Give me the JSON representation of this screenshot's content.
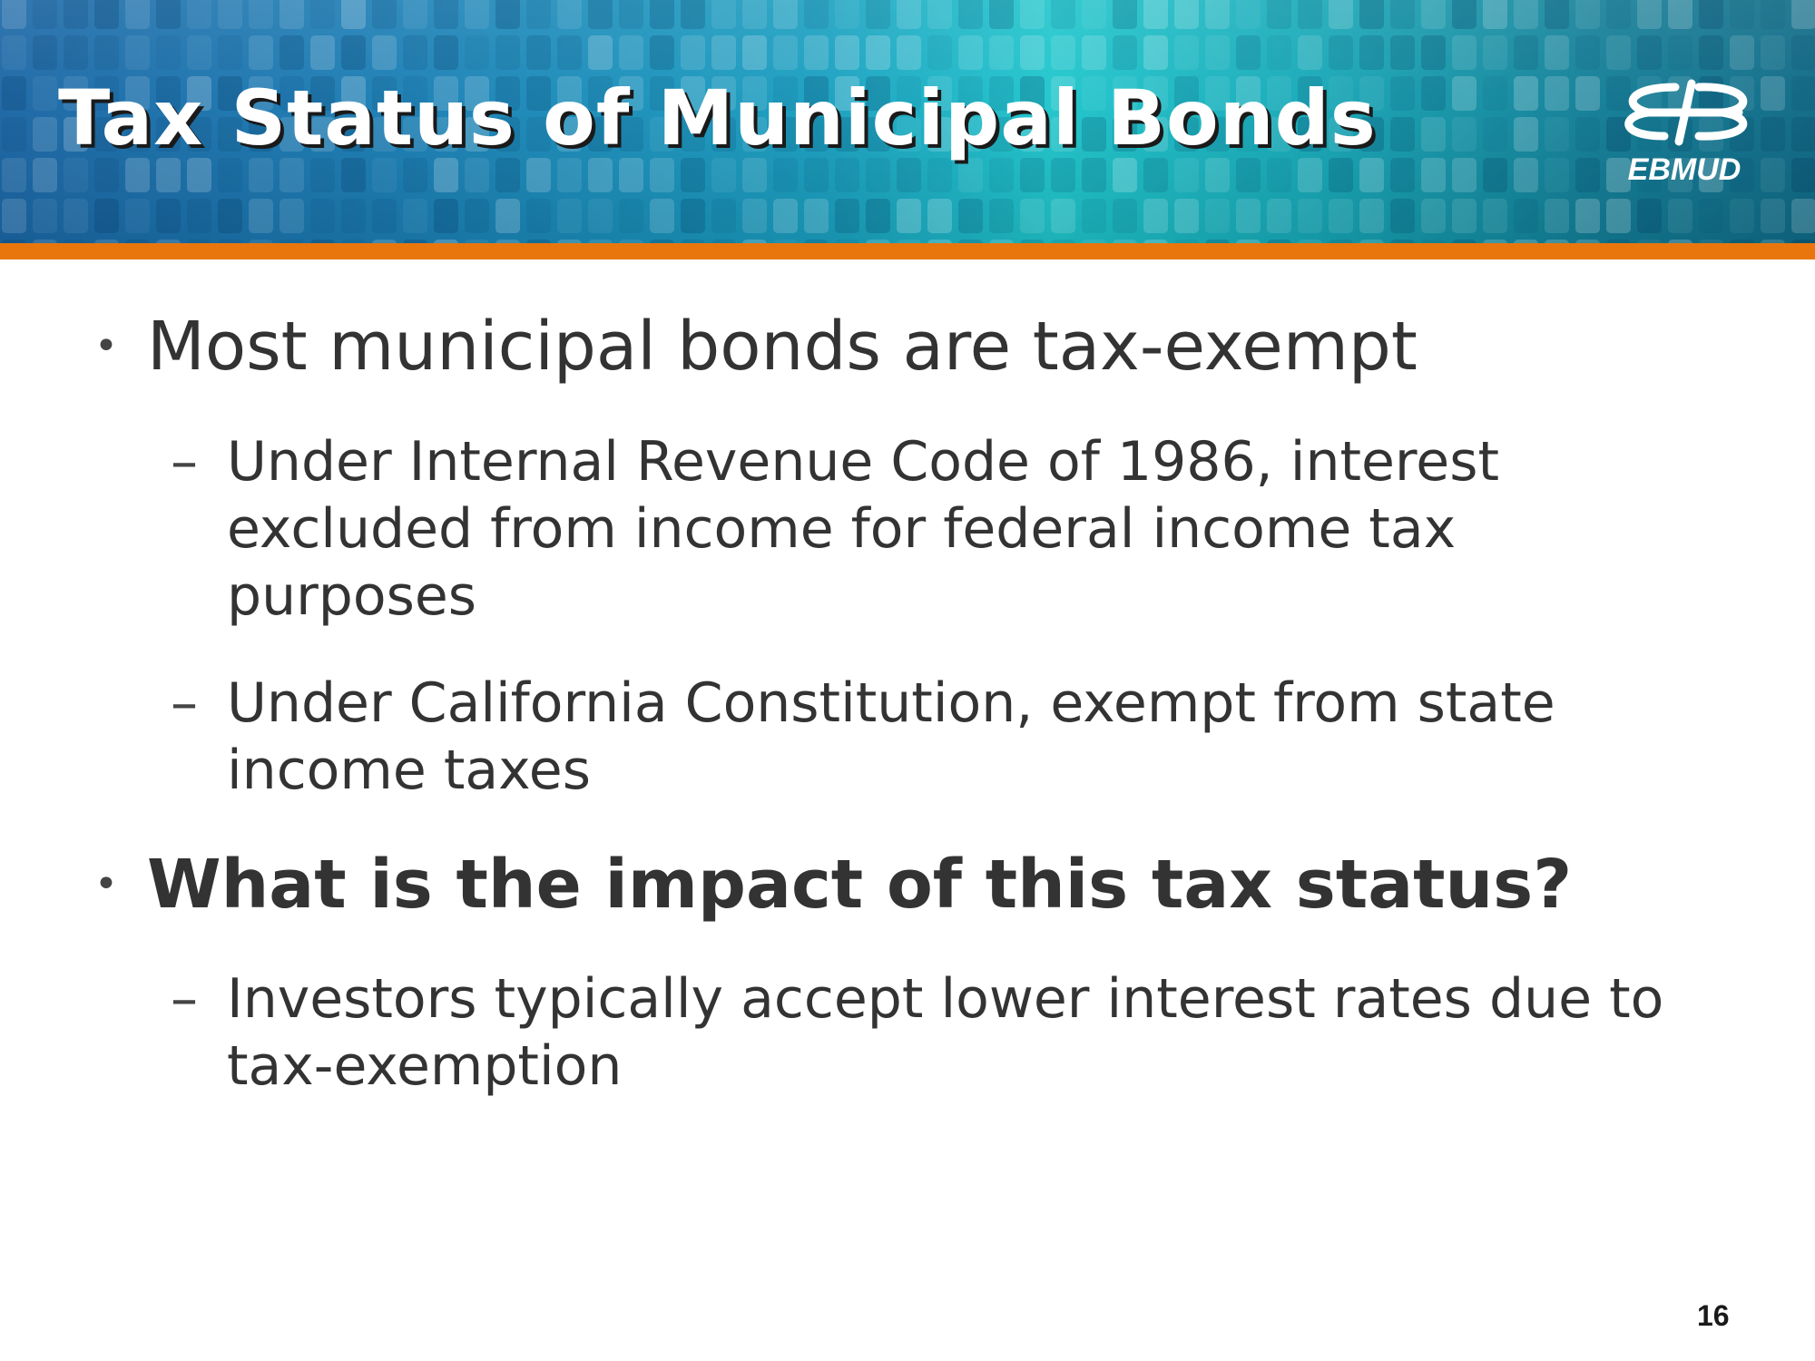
{
  "slide": {
    "title": "Tax Status of Municipal Bonds",
    "logo_text": "EBMUD",
    "page_number": "16"
  },
  "bullets": [
    {
      "text": "Most municipal bonds are tax-exempt",
      "bold": false,
      "sub": [
        "Under Internal Revenue Code of 1986, interest excluded from income for federal income tax purposes",
        "Under California Constitution, exempt from state income taxes"
      ]
    },
    {
      "text": "What is the impact of this tax status?",
      "bold": true,
      "sub": [
        "Investors typically accept lower interest rates due to tax-exemption"
      ]
    }
  ],
  "colors": {
    "accent_orange": "#e8760d",
    "header_blue": "#1b7fb5",
    "header_teal": "#1fc6cc",
    "text": "#333333"
  }
}
